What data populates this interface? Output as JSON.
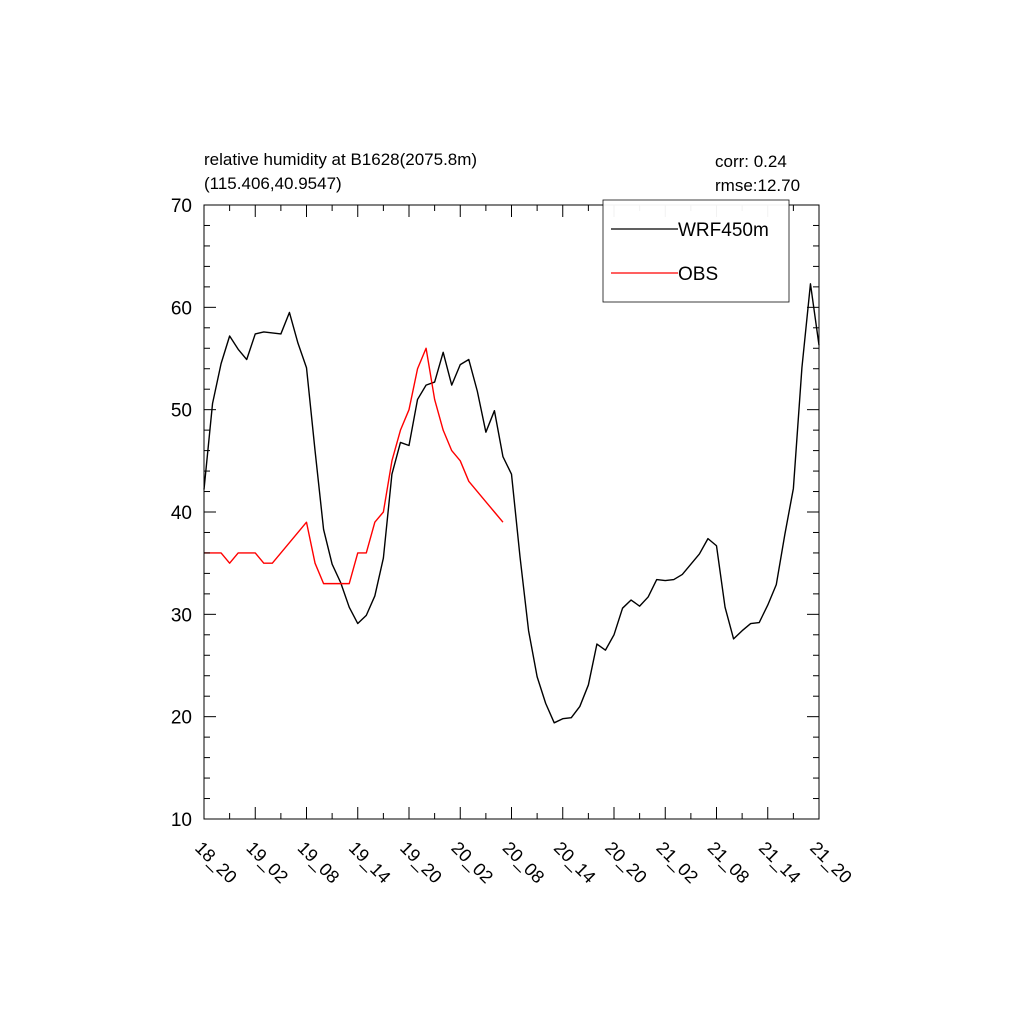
{
  "chart_data": {
    "type": "line",
    "title": "relative humidity at B1628(2075.8m)",
    "subtitle": "(115.406,40.9547)",
    "stats": {
      "corr": "corr:  0.24",
      "rmse": "rmse:12.70"
    },
    "ylim": [
      10,
      70
    ],
    "yticks": [
      10,
      20,
      30,
      40,
      50,
      60,
      70
    ],
    "xlim": [
      0,
      72
    ],
    "xticks": [
      {
        "x": 0,
        "label": "18_20"
      },
      {
        "x": 6,
        "label": "19_02"
      },
      {
        "x": 12,
        "label": "19_08"
      },
      {
        "x": 18,
        "label": "19_14"
      },
      {
        "x": 24,
        "label": "19_20"
      },
      {
        "x": 30,
        "label": "20_02"
      },
      {
        "x": 36,
        "label": "20_08"
      },
      {
        "x": 42,
        "label": "20_14"
      },
      {
        "x": 48,
        "label": "20_20"
      },
      {
        "x": 54,
        "label": "21_02"
      },
      {
        "x": 60,
        "label": "21_08"
      },
      {
        "x": 66,
        "label": "21_14"
      },
      {
        "x": 72,
        "label": "21_20"
      }
    ],
    "grid": false,
    "legend_position": "top-right",
    "series": [
      {
        "name": "WRF450m",
        "color": "#000000",
        "x": [
          0,
          1,
          2,
          3,
          4,
          5,
          6,
          7,
          8,
          9,
          10,
          11,
          12,
          13,
          14,
          15,
          16,
          17,
          18,
          19,
          20,
          21,
          22,
          23,
          24,
          25,
          26,
          27,
          28,
          29,
          30,
          31,
          32,
          33,
          34,
          35,
          36,
          37,
          38,
          39,
          40,
          41,
          42,
          43,
          44,
          45,
          46,
          47,
          48,
          49,
          50,
          51,
          52,
          53,
          54,
          55,
          56,
          57,
          58,
          59,
          60,
          61,
          62,
          63,
          64,
          65,
          66,
          67,
          68,
          69,
          70,
          71,
          72
        ],
        "y": [
          42.2,
          50.6,
          54.5,
          57.2,
          55.9,
          54.9,
          57.4,
          57.6,
          57.5,
          57.4,
          59.5,
          56.5,
          54.1,
          46.0,
          38.3,
          34.9,
          33.1,
          30.7,
          29.1,
          29.9,
          31.8,
          35.5,
          43.7,
          46.8,
          46.5,
          51.0,
          52.4,
          52.7,
          55.6,
          52.4,
          54.4,
          54.9,
          51.8,
          47.8,
          49.9,
          45.4,
          43.7,
          35.6,
          28.4,
          23.9,
          21.3,
          19.4,
          19.8,
          19.9,
          21.0,
          23.1,
          27.1,
          26.5,
          28.0,
          30.6,
          31.4,
          30.8,
          31.7,
          33.4,
          33.3,
          33.4,
          33.9,
          34.9,
          35.9,
          37.4,
          36.7,
          30.7,
          27.6,
          28.4,
          29.1,
          29.2,
          30.9,
          32.9,
          37.8,
          42.3,
          54.1,
          62.3,
          56.3
        ]
      },
      {
        "name": "OBS",
        "color": "#ff0000",
        "x": [
          0,
          1,
          2,
          3,
          4,
          5,
          6,
          7,
          8,
          9,
          10,
          11,
          12,
          13,
          14,
          15,
          16,
          17,
          18,
          19,
          20,
          21,
          22,
          23,
          24,
          25,
          26,
          27,
          28,
          29,
          30,
          31,
          32,
          33,
          34,
          35
        ],
        "y": [
          36,
          36,
          36,
          35,
          36,
          36,
          36,
          35,
          35,
          36,
          37,
          38,
          39,
          35,
          33,
          33,
          33,
          33,
          36,
          36,
          39,
          40,
          45,
          48,
          50,
          54,
          56,
          51,
          48,
          46,
          45,
          43,
          42,
          41,
          40,
          39
        ]
      }
    ]
  }
}
